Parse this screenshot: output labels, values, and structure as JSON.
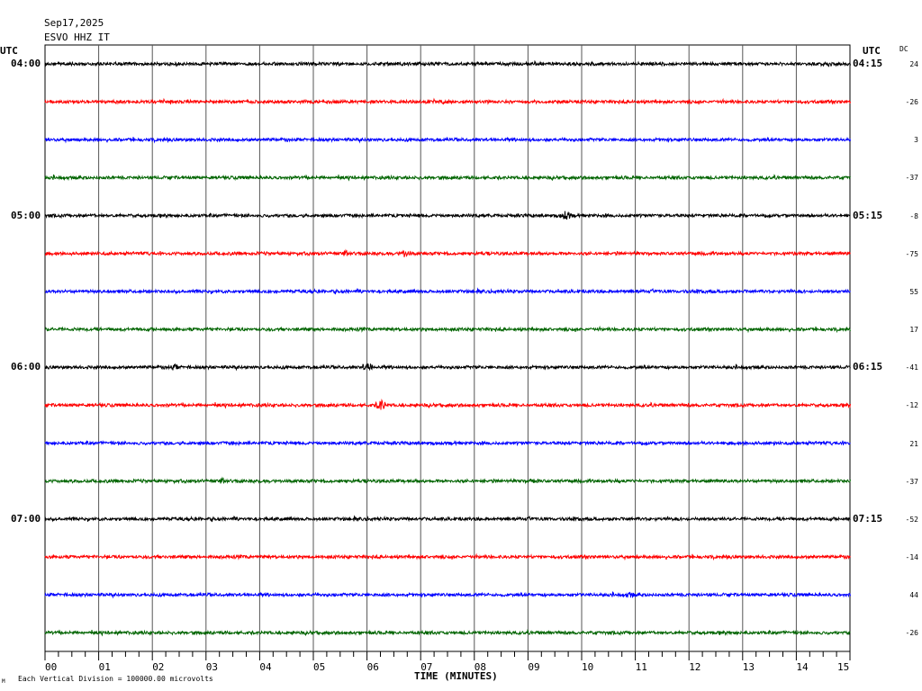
{
  "header": {
    "date": "Sep17,2025",
    "station": "ESVO HHZ IT",
    "utc_left": "UTC",
    "utc_right": "UTC",
    "dc_label": "DC"
  },
  "footer": {
    "scale_note": "Each Vertical Division = 100000.00 microvolts",
    "corner_mark": "M"
  },
  "chart_data": {
    "type": "line",
    "title": "",
    "xlabel": "TIME (MINUTES)",
    "ylabel": "",
    "xlim": [
      0,
      15
    ],
    "x_ticks": [
      "00",
      "01",
      "02",
      "03",
      "04",
      "05",
      "06",
      "07",
      "08",
      "09",
      "10",
      "11",
      "12",
      "13",
      "14",
      "15"
    ],
    "left_time_labels": [
      "04:00",
      "05:00",
      "06:00",
      "07:00"
    ],
    "right_time_labels": [
      "04:15",
      "05:15",
      "06:15",
      "07:15"
    ],
    "trace_colors": [
      "#000000",
      "#ff0000",
      "#0000ff",
      "#006400"
    ],
    "series": [
      {
        "dc": "24",
        "color": "#000000",
        "events": []
      },
      {
        "dc": "-26",
        "color": "#ff0000",
        "events": []
      },
      {
        "dc": "3",
        "color": "#0000ff",
        "events": []
      },
      {
        "dc": "-37",
        "color": "#006400",
        "events": []
      },
      {
        "dc": "-8",
        "color": "#000000",
        "events": [
          {
            "minute": 9.7,
            "amp": 4
          }
        ]
      },
      {
        "dc": "-75",
        "color": "#ff0000",
        "events": [
          {
            "minute": 6.7,
            "amp": 3
          }
        ]
      },
      {
        "dc": "55",
        "color": "#0000ff",
        "events": []
      },
      {
        "dc": "17",
        "color": "#006400",
        "events": []
      },
      {
        "dc": "-41",
        "color": "#000000",
        "events": [
          {
            "minute": 6.0,
            "amp": 4
          },
          {
            "minute": 2.4,
            "amp": 2
          }
        ]
      },
      {
        "dc": "-12",
        "color": "#ff0000",
        "events": [
          {
            "minute": 6.25,
            "amp": 6
          }
        ]
      },
      {
        "dc": "21",
        "color": "#0000ff",
        "events": []
      },
      {
        "dc": "-37",
        "color": "#006400",
        "events": [
          {
            "minute": 9.1,
            "amp": 2
          }
        ]
      },
      {
        "dc": "-52",
        "color": "#000000",
        "events": []
      },
      {
        "dc": "-14",
        "color": "#ff0000",
        "events": []
      },
      {
        "dc": "44",
        "color": "#0000ff",
        "events": [
          {
            "minute": 10.9,
            "amp": 2
          }
        ]
      },
      {
        "dc": "-26",
        "color": "#006400",
        "events": []
      }
    ]
  }
}
